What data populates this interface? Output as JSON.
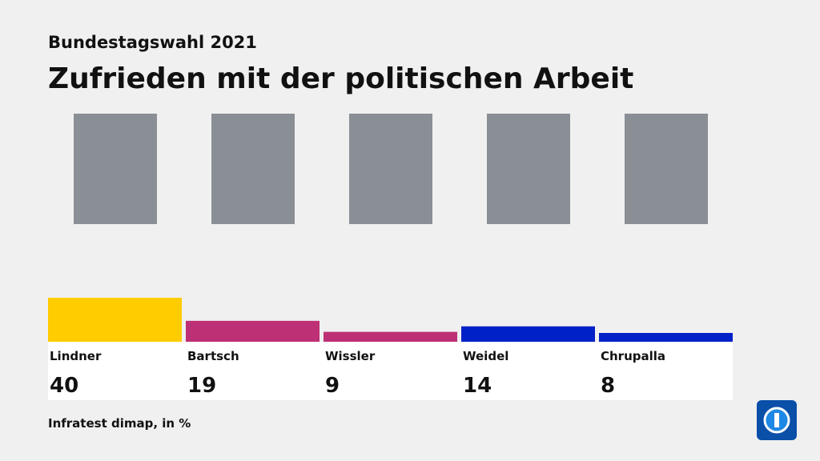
{
  "chart_data": {
    "type": "bar",
    "subtitle": "Bundestagswahl 2021",
    "title": "Zufrieden mit der politischen Arbeit",
    "categories": [
      "Lindner",
      "Bartsch",
      "Wissler",
      "Weidel",
      "Chrupalla"
    ],
    "values": [
      40,
      19,
      9,
      14,
      8
    ],
    "colors": [
      "#ffcc00",
      "#be3075",
      "#be3075",
      "#0021c8",
      "#0021c8"
    ],
    "source": "Infratest dimap, in %"
  }
}
